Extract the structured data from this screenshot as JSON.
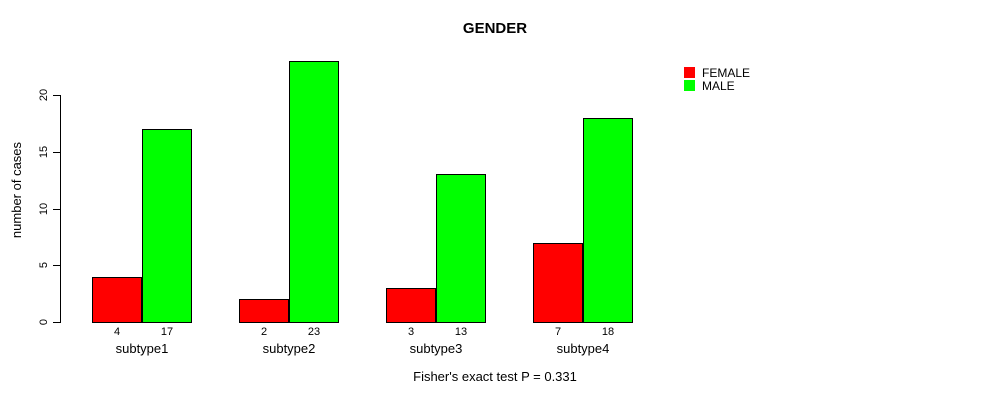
{
  "title": "GENDER",
  "ylabel": "number of cases",
  "footer": "Fisher's exact test P = 0.331",
  "legend": {
    "items": [
      {
        "label": "FEMALE",
        "color": "#ff0000"
      },
      {
        "label": "MALE",
        "color": "#00ff00"
      }
    ]
  },
  "chart_data": {
    "type": "bar",
    "title": "GENDER",
    "xlabel": "",
    "ylabel": "number of cases",
    "categories": [
      "subtype1",
      "subtype2",
      "subtype3",
      "subtype4"
    ],
    "series": [
      {
        "name": "FEMALE",
        "color": "#ff0000",
        "values": [
          4,
          2,
          3,
          7
        ]
      },
      {
        "name": "MALE",
        "color": "#00ff00",
        "values": [
          17,
          23,
          13,
          18
        ]
      }
    ],
    "yticks": [
      0,
      5,
      10,
      15,
      20
    ],
    "ylim": [
      0,
      23
    ],
    "bar_value_labels": [
      [
        4,
        2,
        3,
        7
      ],
      [
        17,
        23,
        13,
        18
      ]
    ],
    "annotation": "Fisher's exact test P = 0.331",
    "legend_position": "top-right",
    "grid": false,
    "axis_color": "#000000",
    "bar_border_color": "#000000"
  }
}
